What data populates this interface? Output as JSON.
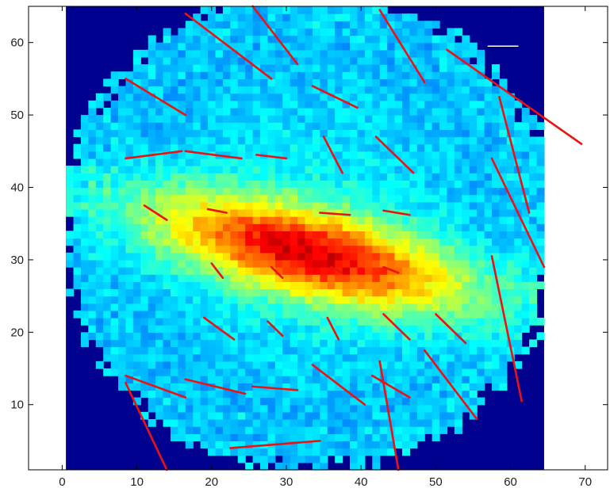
{
  "chart_data": {
    "type": "heatmap",
    "title": "",
    "xlabel": "",
    "ylabel": "",
    "xlim": [
      -4.5,
      73
    ],
    "ylim": [
      1,
      65
    ],
    "x_ticks": [
      0,
      10,
      20,
      30,
      40,
      50,
      60,
      70
    ],
    "y_ticks": [
      10,
      20,
      30,
      40,
      50,
      60
    ],
    "x_tick_labels": [
      "0",
      "10",
      "20",
      "30",
      "40",
      "50",
      "60",
      "70"
    ],
    "y_tick_labels": [
      "10",
      "20",
      "30",
      "40",
      "50",
      "60"
    ],
    "heatmap": {
      "x_range": [
        0.5,
        64.5
      ],
      "y_range": [
        1,
        65
      ],
      "colormap": "jet",
      "background_color": "#00008f",
      "disc_center": [
        33,
        34
      ],
      "disc_radius": 33,
      "core_center": [
        33,
        31
      ],
      "core_angle_deg": -14,
      "core_semi_axes": [
        15,
        4
      ]
    },
    "vectors": {
      "color": "#ee1111",
      "segments": [
        [
          16.5,
          64,
          28,
          55
        ],
        [
          25.5,
          65,
          31.5,
          57
        ],
        [
          42.5,
          64.5,
          48.5,
          54.5
        ],
        [
          51.5,
          59,
          69.5,
          46
        ],
        [
          57,
          59.5,
          61,
          59.5
        ],
        [
          8.5,
          55,
          16.5,
          50
        ],
        [
          33.5,
          54,
          39.5,
          51
        ],
        [
          8.5,
          44,
          16,
          45
        ],
        [
          16.5,
          45,
          24,
          44
        ],
        [
          26,
          44.5,
          30,
          44
        ],
        [
          35,
          47,
          37.5,
          42
        ],
        [
          42,
          47,
          47,
          42
        ],
        [
          58.5,
          52.5,
          62.5,
          36.5
        ],
        [
          57.5,
          44,
          64.5,
          29
        ],
        [
          11,
          37.5,
          14,
          35.5
        ],
        [
          19.5,
          37,
          22,
          36.5
        ],
        [
          34.5,
          36.5,
          38.5,
          36.2
        ],
        [
          43,
          36.8,
          46.5,
          36.2
        ],
        [
          20,
          29.5,
          21.5,
          27.5
        ],
        [
          28,
          29,
          29.5,
          27.5
        ],
        [
          36,
          29,
          37.5,
          28.2
        ],
        [
          43,
          29,
          45,
          28.2
        ],
        [
          57.5,
          30.5,
          61.5,
          10.5
        ],
        [
          19,
          22,
          23,
          19
        ],
        [
          27.5,
          21.5,
          29.5,
          19.5
        ],
        [
          35.5,
          22,
          37,
          19
        ],
        [
          43,
          22.5,
          46.5,
          19
        ],
        [
          50,
          22.5,
          54,
          18.5
        ],
        [
          48.5,
          17.5,
          55.5,
          8
        ],
        [
          8.5,
          14,
          16.5,
          11
        ],
        [
          16.5,
          13.5,
          24.5,
          11.5
        ],
        [
          25.5,
          12.5,
          31.5,
          12
        ],
        [
          33.5,
          15.5,
          40.5,
          10
        ],
        [
          41.5,
          14,
          46.5,
          11
        ],
        [
          42.5,
          16,
          45,
          1
        ],
        [
          8.5,
          13,
          14,
          1
        ],
        [
          22.5,
          4,
          34.5,
          5
        ]
      ]
    }
  }
}
